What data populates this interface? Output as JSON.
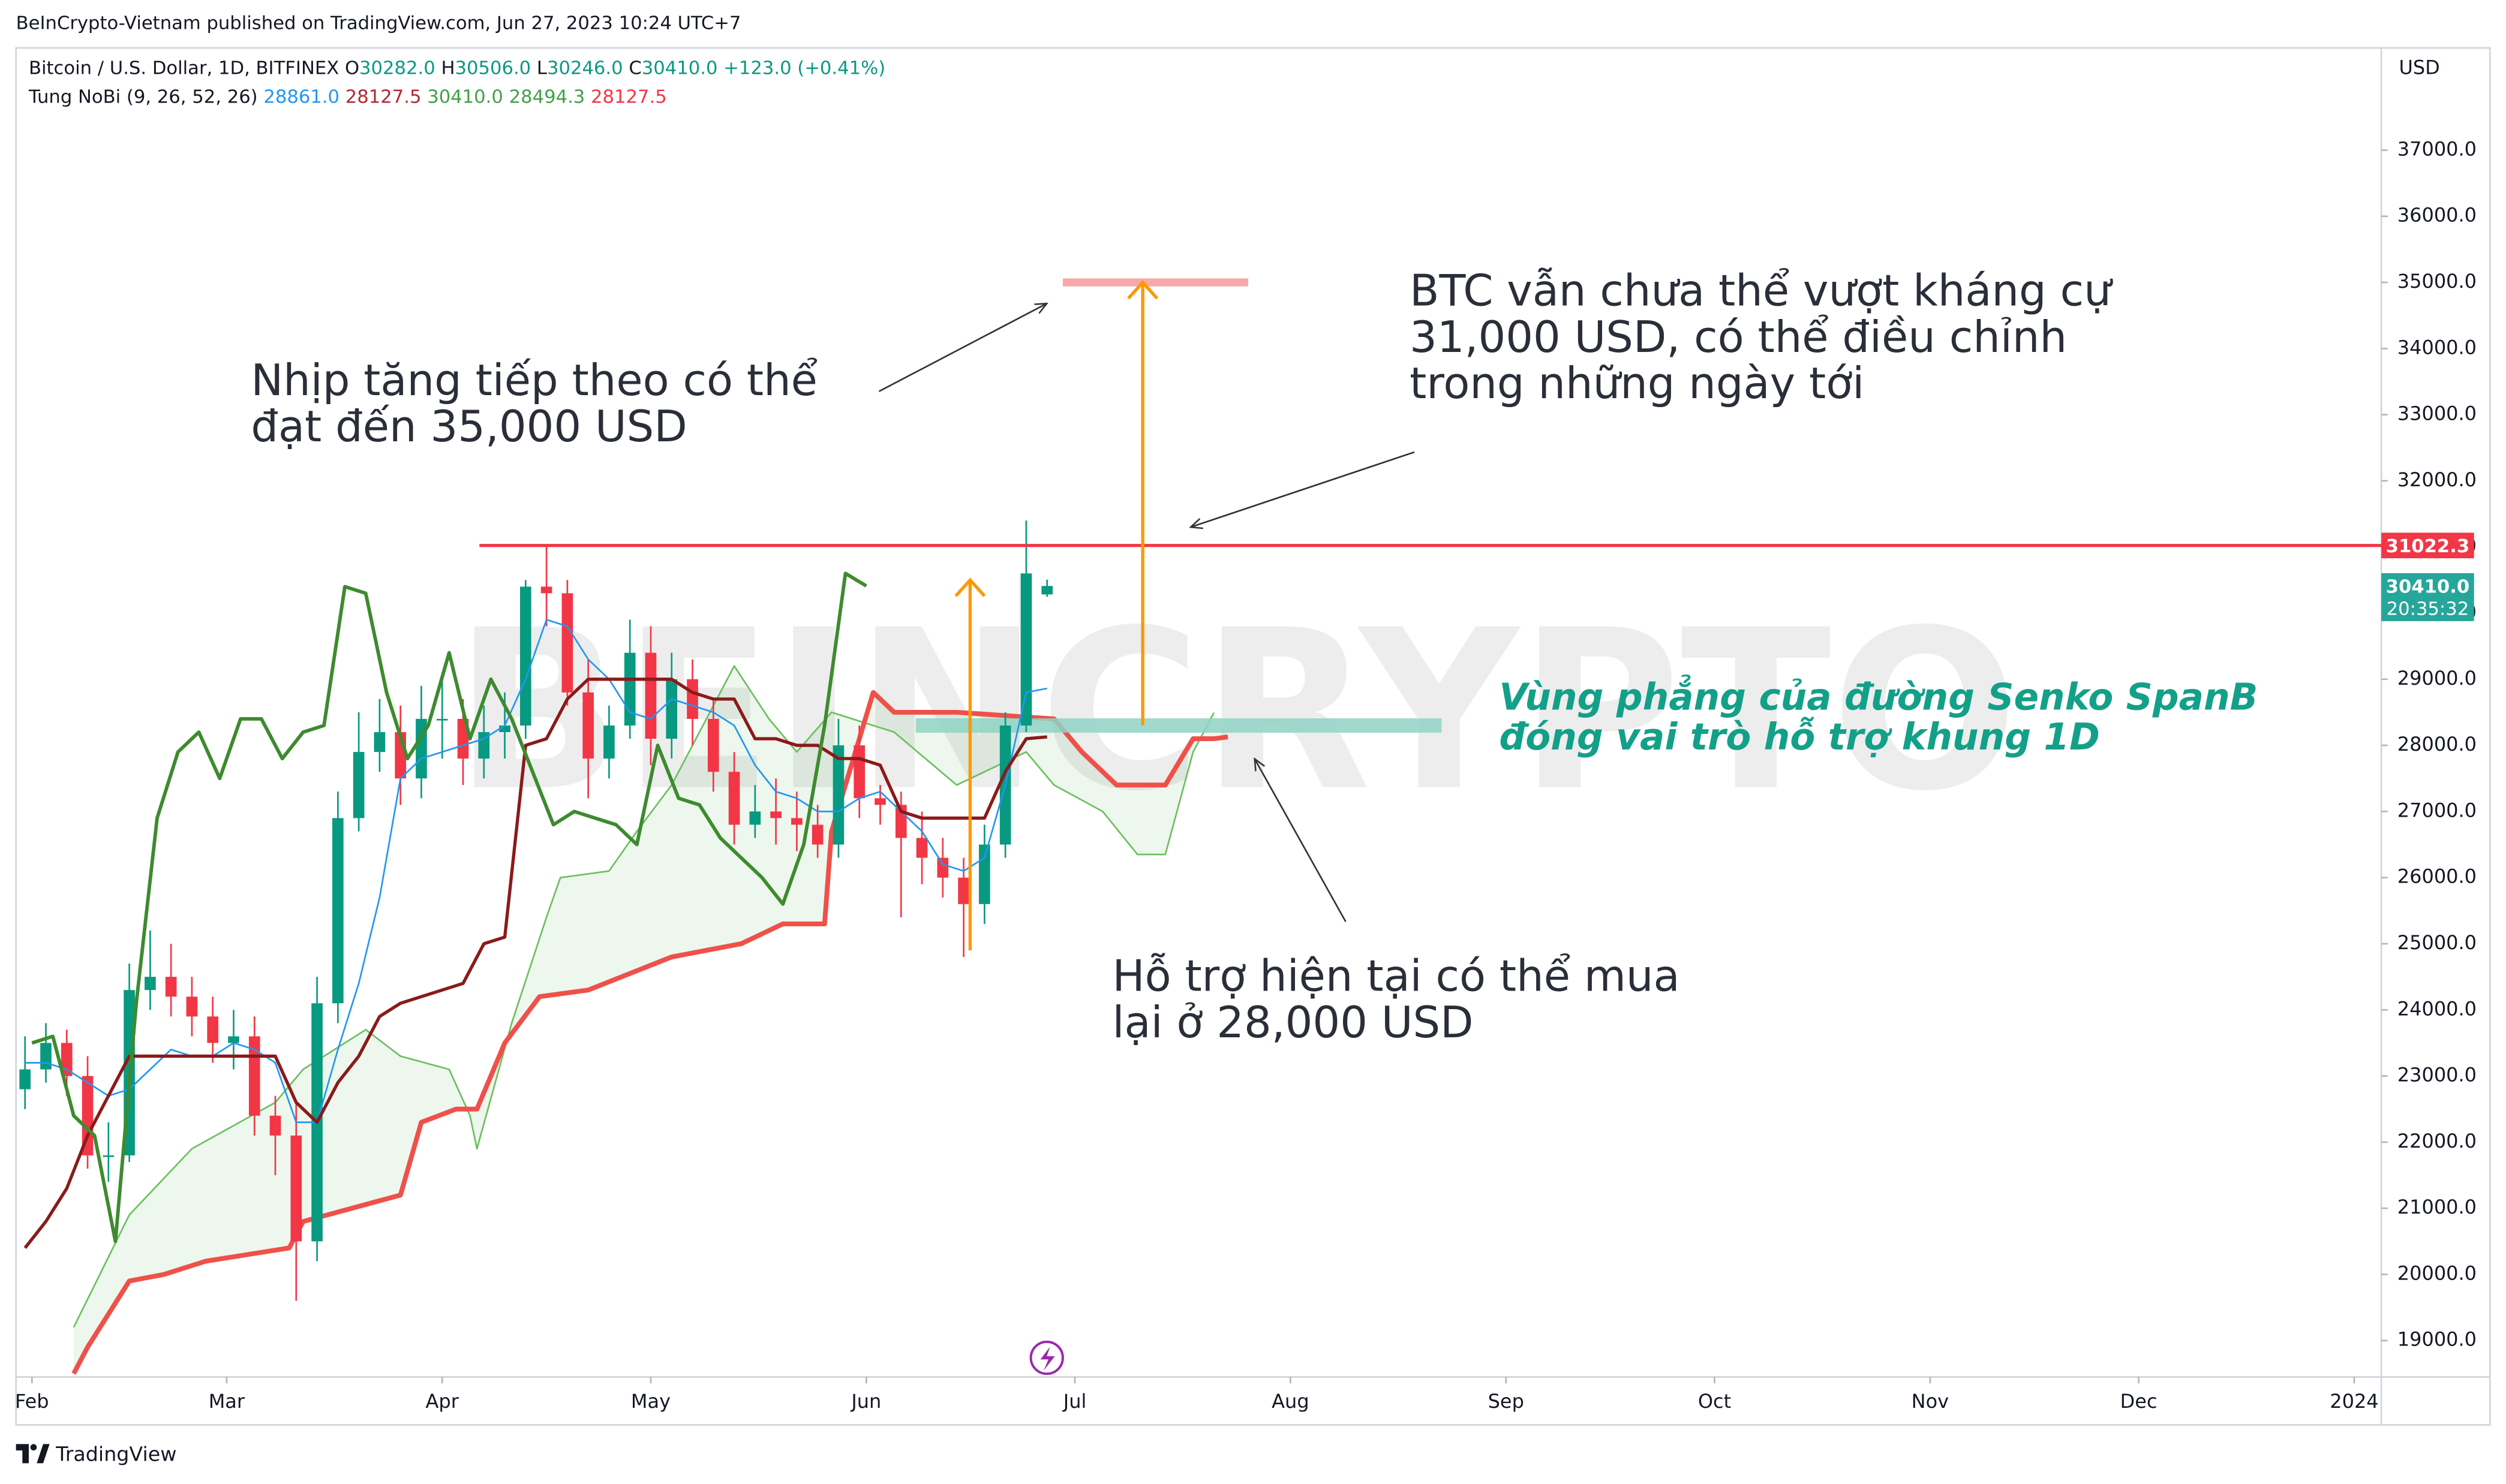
{
  "header": {
    "published": "BeInCrypto-Vietnam published on TradingView.com, Jun 27, 2023 10:24 UTC+7",
    "symbol": "Bitcoin / U.S. Dollar, 1D, BITFINEX",
    "ohlc": [
      [
        "O",
        "30282.0"
      ],
      [
        "H",
        "30506.0"
      ],
      [
        "L",
        "30246.0"
      ],
      [
        "C",
        "30410.0"
      ]
    ],
    "change": "+123.0 (+0.41%)",
    "indicator": "Tung NoBi (9, 26, 52, 26)",
    "indicator_values": [
      {
        "text": "28861.0",
        "color": "#2196f3"
      },
      {
        "text": "28127.5",
        "color": "#b22833"
      },
      {
        "text": "30410.0",
        "color": "#43a047"
      },
      {
        "text": "28494.3",
        "color": "#43a047"
      },
      {
        "text": "28127.5",
        "color": "#f23645"
      }
    ],
    "currency": "USD",
    "watermark": "BEINCRYPTO"
  },
  "footer": {
    "brand": "TradingView"
  },
  "annotations": {
    "target_note": [
      "Nhịp tăng tiếp theo có thể",
      "đạt đến 35,000 USD"
    ],
    "resistance_note": [
      "BTC vẫn chưa thể vượt kháng cự",
      "31,000 USD, có thể điều chỉnh",
      "trong những ngày tới"
    ],
    "zone_note": [
      "Vùng phẳng của đường Senko SpanB",
      "đóng vai trò hỗ trợ khung 1D"
    ],
    "support_note": [
      "Hỗ trợ hiện tại có thể mua",
      "lại ở 28,000 USD"
    ]
  },
  "chart_data": {
    "type": "candlestick",
    "xlim": [
      -2.3,
      337.9
    ],
    "ylim": [
      18449,
      38546
    ],
    "xticks": [
      {
        "value": 0,
        "label": "Feb"
      },
      {
        "value": 28,
        "label": "Mar"
      },
      {
        "value": 59,
        "label": "Apr"
      },
      {
        "value": 89,
        "label": "May"
      },
      {
        "value": 120,
        "label": "Jun"
      },
      {
        "value": 150,
        "label": "Jul"
      },
      {
        "value": 181,
        "label": "Aug"
      },
      {
        "value": 212,
        "label": "Sep"
      },
      {
        "value": 242,
        "label": "Oct"
      },
      {
        "value": 273,
        "label": "Nov"
      },
      {
        "value": 303,
        "label": "Dec"
      },
      {
        "value": 334,
        "label": "2024"
      }
    ],
    "yticks": [
      {
        "value": 19000,
        "label": "19000.0"
      },
      {
        "value": 20000,
        "label": "20000.0"
      },
      {
        "value": 21000,
        "label": "21000.0"
      },
      {
        "value": 22000,
        "label": "22000.0"
      },
      {
        "value": 23000,
        "label": "23000.0"
      },
      {
        "value": 24000,
        "label": "24000.0"
      },
      {
        "value": 25000,
        "label": "25000.0"
      },
      {
        "value": 26000,
        "label": "26000.0"
      },
      {
        "value": 27000,
        "label": "27000.0"
      },
      {
        "value": 28000,
        "label": "28000.0"
      },
      {
        "value": 29000,
        "label": "29000.0"
      },
      {
        "value": 30000,
        "label": "30000.0"
      },
      {
        "value": 31000,
        "label": "31000.0"
      },
      {
        "value": 32000,
        "label": "32000.0"
      },
      {
        "value": 33000,
        "label": "33000.0"
      },
      {
        "value": 34000,
        "label": "34000.0"
      },
      {
        "value": 35000,
        "label": "35000.0"
      },
      {
        "value": 36000,
        "label": "36000.0"
      },
      {
        "value": 37000,
        "label": "37000.0"
      }
    ],
    "grid": false,
    "colors": {
      "up": "#089981",
      "down": "#f23645"
    },
    "ohlc": {
      "x": [
        -1,
        2,
        5,
        8,
        11,
        14,
        17,
        20,
        23,
        26,
        29,
        32,
        35,
        38,
        41,
        44,
        47,
        50,
        53,
        56,
        59,
        62,
        65,
        68,
        71,
        74,
        77,
        80,
        83,
        86,
        89,
        92,
        95,
        98,
        101,
        104,
        107,
        110,
        113,
        116,
        119,
        122,
        125,
        128,
        131,
        134,
        137,
        140,
        143,
        146
      ],
      "open": [
        22800,
        23100,
        23500,
        23000,
        21800,
        21800,
        24300,
        24500,
        24200,
        23900,
        23500,
        23600,
        22400,
        22100,
        20500,
        24100,
        26900,
        27900,
        28200,
        27500,
        28400,
        28400,
        27800,
        28200,
        28300,
        30400,
        30300,
        28800,
        27800,
        28300,
        29400,
        28100,
        29000,
        28400,
        27600,
        26800,
        27000,
        26900,
        26800,
        26500,
        28000,
        27200,
        27100,
        26600,
        26300,
        26000,
        25600,
        26500,
        28300,
        30282
      ],
      "high": [
        23600,
        23800,
        23700,
        23300,
        22300,
        24700,
        25200,
        25000,
        24500,
        24200,
        24000,
        23900,
        22700,
        22600,
        24500,
        27300,
        28500,
        28700,
        28600,
        28900,
        29100,
        28700,
        28600,
        28800,
        30500,
        31000,
        30500,
        29300,
        28600,
        29900,
        29800,
        29400,
        29300,
        28700,
        27900,
        27400,
        27500,
        27300,
        27100,
        28400,
        28300,
        27400,
        27300,
        27000,
        26600,
        26300,
        26800,
        28500,
        31400,
        30506
      ],
      "low": [
        22500,
        22900,
        22700,
        21600,
        21400,
        21700,
        24000,
        23900,
        23600,
        23200,
        23100,
        22100,
        21500,
        19600,
        20200,
        23800,
        26700,
        27600,
        27100,
        27200,
        27800,
        27400,
        27500,
        27800,
        28100,
        29800,
        28600,
        27200,
        27500,
        28100,
        27700,
        27800,
        28000,
        27300,
        26500,
        26600,
        26500,
        26400,
        26300,
        26300,
        26900,
        26800,
        25400,
        25900,
        25700,
        24800,
        25300,
        26300,
        28200,
        30246
      ],
      "close": [
        23100,
        23500,
        23000,
        21800,
        21800,
        24300,
        24500,
        24200,
        23900,
        23500,
        23600,
        22400,
        22100,
        20500,
        24100,
        26900,
        27900,
        28200,
        27500,
        28400,
        28400,
        27800,
        28200,
        28300,
        30400,
        30300,
        28800,
        27800,
        28300,
        29400,
        28100,
        29000,
        28400,
        27600,
        26800,
        27000,
        26900,
        26800,
        26500,
        28000,
        27200,
        27100,
        26600,
        26300,
        26000,
        25600,
        26500,
        28300,
        30600,
        30410
      ]
    },
    "lines": [
      {
        "color": "#2196f3",
        "width": 1,
        "x": [
          -1,
          2,
          5,
          8,
          11,
          14,
          17,
          20,
          23,
          26,
          29,
          32,
          35,
          38,
          41,
          44,
          47,
          50,
          53,
          56,
          59,
          62,
          65,
          68,
          71,
          74,
          77,
          80,
          83,
          86,
          89,
          92,
          95,
          98,
          101,
          104,
          107,
          110,
          113,
          116,
          119,
          122,
          125,
          128,
          131,
          134,
          137,
          140,
          143,
          146
        ],
        "values": [
          23200,
          23200,
          23100,
          22900,
          22700,
          22800,
          23100,
          23400,
          23300,
          23300,
          23500,
          23400,
          23200,
          22300,
          22300,
          23400,
          24400,
          25700,
          27500,
          27800,
          27900,
          28000,
          28100,
          28300,
          29000,
          29900,
          29800,
          29300,
          29000,
          28500,
          28400,
          28700,
          28600,
          28500,
          28300,
          27700,
          27300,
          27200,
          27000,
          27000,
          27200,
          27300,
          27000,
          26700,
          26200,
          26100,
          26300,
          27400,
          28800,
          28861
        ]
      },
      {
        "color": "#8b1a1a",
        "width": 2,
        "x": [
          -1,
          2,
          5,
          8,
          11,
          14,
          17,
          20,
          23,
          26,
          29,
          32,
          35,
          38,
          41,
          44,
          47,
          50,
          53,
          56,
          59,
          62,
          65,
          68,
          71,
          74,
          77,
          80,
          83,
          86,
          89,
          92,
          95,
          98,
          101,
          104,
          107,
          110,
          113,
          116,
          119,
          122,
          125,
          128,
          131,
          134,
          137,
          140,
          143,
          146
        ],
        "values": [
          20400,
          20800,
          21300,
          22100,
          22700,
          23300,
          23300,
          23300,
          23300,
          23300,
          23300,
          23300,
          23300,
          22600,
          22300,
          22900,
          23300,
          23900,
          24100,
          24200,
          24300,
          24400,
          25000,
          25100,
          28000,
          28100,
          28700,
          29000,
          29000,
          29000,
          29000,
          29000,
          28800,
          28700,
          28700,
          28100,
          28100,
          28000,
          28000,
          27800,
          27800,
          27700,
          27000,
          26900,
          26900,
          26900,
          26900,
          27600,
          28100,
          28127.5
        ]
      },
      {
        "color": "#3d8b2f",
        "width": 2.2,
        "x": [
          0,
          3,
          6,
          9,
          12,
          15,
          18,
          21,
          24,
          27,
          30,
          33,
          36,
          39,
          42,
          45,
          48,
          51,
          54,
          57,
          60,
          63,
          66,
          69,
          72,
          75,
          78,
          81,
          84,
          87,
          90,
          93,
          96,
          99,
          102,
          105,
          108,
          111,
          114,
          117,
          120
        ],
        "values": [
          23500,
          23600,
          22400,
          22100,
          20500,
          24100,
          26900,
          27900,
          28200,
          27500,
          28400,
          28400,
          27800,
          28200,
          28300,
          30400,
          30300,
          28800,
          27800,
          28300,
          29400,
          28100,
          29000,
          28400,
          27600,
          26800,
          27000,
          26900,
          26800,
          26500,
          28000,
          27200,
          27100,
          26600,
          26300,
          26000,
          25600,
          26500,
          28300,
          30600,
          30410
        ]
      }
    ],
    "span_a": {
      "color": "#6cbf5f",
      "width": 1,
      "x": [
        6,
        14,
        23,
        35,
        39,
        48,
        53,
        60,
        63,
        64,
        69,
        74,
        76,
        83,
        87,
        92,
        97,
        101,
        106,
        110,
        115,
        124,
        133,
        143,
        147,
        154,
        159,
        163,
        167,
        170
      ],
      "values": [
        19200,
        20900,
        21900,
        22600,
        23100,
        23700,
        23300,
        23100,
        22400,
        21900,
        23800,
        25400,
        26000,
        26100,
        26700,
        27400,
        28400,
        29200,
        28400,
        27900,
        28500,
        28200,
        27400,
        27900,
        27400,
        27000,
        26350,
        26350,
        27900,
        28494.3
      ]
    },
    "span_b": {
      "color": "#f0504a",
      "width": 3,
      "x": [
        6,
        8,
        14,
        19,
        25,
        37,
        39,
        53,
        56,
        61,
        64,
        68,
        73,
        80,
        92,
        102,
        108,
        114,
        115,
        121,
        124,
        133,
        147,
        151,
        156,
        163,
        167,
        170,
        172
      ],
      "values": [
        18500,
        18900,
        19900,
        20000,
        20200,
        20400,
        20800,
        21200,
        22300,
        22500,
        22500,
        23500,
        24200,
        24300,
        24800,
        25000,
        25300,
        25300,
        26700,
        28800,
        28500,
        28500,
        28400,
        27900,
        27400,
        27400,
        28100,
        28100,
        28127.5
      ]
    },
    "cloud_color": "#4caf50",
    "resistance": {
      "value": 31022.3,
      "label": "31022.3",
      "color": "#f23645"
    },
    "target": {
      "value": 35000,
      "color": "#f7a8ab"
    },
    "support_zone": {
      "value": 28300,
      "color": "#8fd3c6"
    },
    "arrows": {
      "color": "#ff9800",
      "items": [
        {
          "from": 24900,
          "to": 30500
        },
        {
          "from": 28300,
          "to": 35000
        }
      ]
    },
    "last_price": {
      "value": 30410,
      "label": "30410.0",
      "countdown": "20:35:32",
      "color": "#26a69a"
    }
  }
}
